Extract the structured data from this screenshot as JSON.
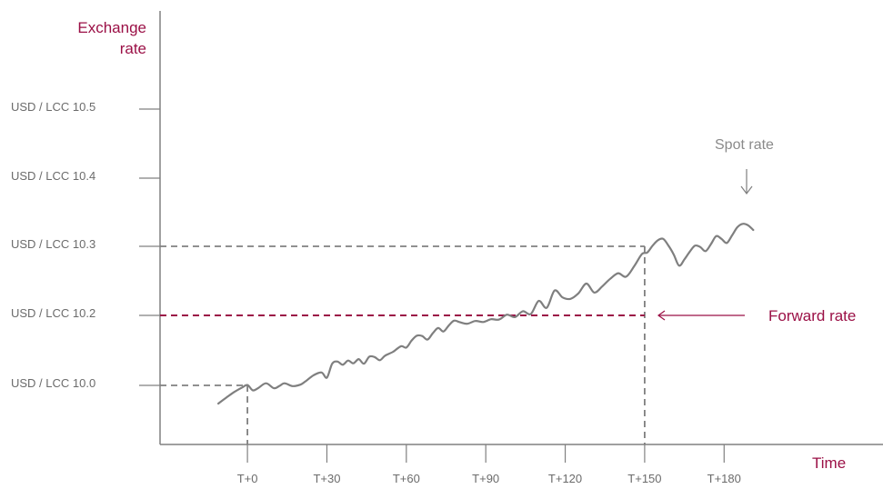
{
  "chart_data": {
    "type": "line",
    "ylabel_line1": "Exchange",
    "ylabel_line2": "rate",
    "xlabel": "Time",
    "y_ticks": [
      {
        "label": "USD / LCC 10.0",
        "value": 10.0
      },
      {
        "label": "USD / LCC 10.2",
        "value": 10.2
      },
      {
        "label": "USD / LCC 10.3",
        "value": 10.3
      },
      {
        "label": "USD / LCC 10.4",
        "value": 10.4
      },
      {
        "label": "USD / LCC 10.5",
        "value": 10.5
      }
    ],
    "x_ticks": [
      {
        "label": "T+0",
        "value": 0
      },
      {
        "label": "T+30",
        "value": 30
      },
      {
        "label": "T+60",
        "value": 60
      },
      {
        "label": "T+90",
        "value": 90
      },
      {
        "label": "T+120",
        "value": 120
      },
      {
        "label": "T+150",
        "value": 150
      },
      {
        "label": "T+180",
        "value": 180
      }
    ],
    "xlim": [
      -33,
      240
    ],
    "ylim": [
      9.9,
      10.6
    ],
    "grid": false,
    "series": [
      {
        "name": "Spot rate",
        "color": "#7f7f7f",
        "x": [
          -11,
          -8,
          -5,
          -2,
          0,
          2,
          4,
          7,
          10,
          12,
          14,
          17,
          20,
          22,
          25,
          28,
          30,
          32,
          34,
          36,
          38,
          40,
          42,
          44,
          46,
          48,
          50,
          52,
          55,
          58,
          60,
          62,
          64,
          66,
          68,
          70,
          72,
          74,
          76,
          78,
          80,
          83,
          86,
          89,
          92,
          95,
          98,
          101,
          104,
          107,
          110,
          113,
          116,
          119,
          122,
          125,
          128,
          131,
          134,
          137,
          140,
          143,
          146,
          149,
          151,
          153,
          155,
          157,
          159,
          161,
          163,
          165,
          167,
          169,
          171,
          173,
          175,
          177,
          179,
          181,
          183,
          185,
          187,
          189,
          191
        ],
        "y": [
          9.948,
          9.965,
          9.981,
          9.994,
          10.001,
          9.986,
          9.992,
          10.006,
          9.992,
          9.998,
          10.006,
          9.998,
          10.002,
          10.012,
          10.029,
          10.037,
          10.022,
          10.062,
          10.068,
          10.059,
          10.071,
          10.063,
          10.075,
          10.062,
          10.082,
          10.081,
          10.072,
          10.085,
          10.096,
          10.112,
          10.108,
          10.128,
          10.142,
          10.141,
          10.131,
          10.149,
          10.164,
          10.154,
          10.171,
          10.185,
          10.181,
          10.176,
          10.184,
          10.181,
          10.189,
          10.188,
          10.201,
          10.195,
          10.206,
          10.202,
          10.221,
          10.211,
          10.236,
          10.226,
          10.224,
          10.232,
          10.246,
          10.233,
          10.242,
          10.253,
          10.261,
          10.256,
          10.271,
          10.289,
          10.291,
          10.301,
          10.309,
          10.311,
          10.301,
          10.288,
          10.272,
          10.281,
          10.292,
          10.301,
          10.299,
          10.293,
          10.303,
          10.315,
          10.311,
          10.305,
          10.316,
          10.328,
          10.333,
          10.331,
          10.324
        ]
      }
    ],
    "reference_lines": [
      {
        "label": "",
        "y": 10.0,
        "x": 0,
        "color": "#808080"
      },
      {
        "label": "",
        "y": 10.3,
        "x": 150,
        "color": "#808080"
      },
      {
        "label": "Forward rate",
        "y": 10.2,
        "x": 150,
        "color": "#9b1046"
      }
    ],
    "annotations": [
      {
        "text": "Spot rate",
        "color": "#8a8a8a"
      },
      {
        "text": "Forward rate",
        "color": "#9b1046"
      }
    ],
    "colors": {
      "axis": "#808080",
      "accent": "#9b1046",
      "tick_text": "#6b6b6b"
    }
  }
}
